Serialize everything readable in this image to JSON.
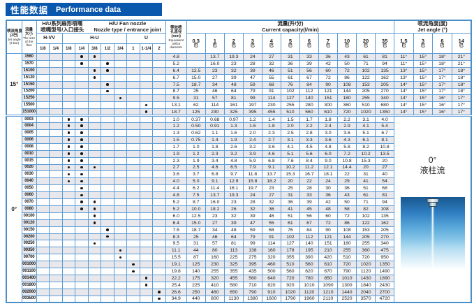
{
  "title": {
    "zh": "性能数据",
    "en": "Performance data"
  },
  "colors": {
    "title_bar": "#0a58ad",
    "grid_border": "#5b9bd5",
    "outer_border": "#4a90c8",
    "stripe_row": "#e8e8ec",
    "illustration_top_blue": "#17578f",
    "illustration_light_blue": "#b9dff2"
  },
  "table": {
    "header": {
      "jet_angle_col": {
        "zh1": "喷流角度",
        "zh2": "(3巴)",
        "en1": "Jet angle",
        "en2": "(3 bar)"
      },
      "flow_col": {
        "zh1": "流量",
        "zh2": "大小",
        "en1": "The size",
        "en2": "of the",
        "en3": "flow"
      },
      "nozzle_group": {
        "zh1": "H/U系列扇形喷嘴",
        "zh2": "喷嘴型号/入口接头",
        "en1": "H/U  Fan nozzle",
        "en2": "Nozzle type / entrance joint"
      },
      "nozzle_subgroups": [
        {
          "label": "H-VV",
          "sizes": [
            "1/8",
            "1/4"
          ]
        },
        {
          "label": "H-U",
          "sizes": [
            "1/8",
            "1/4",
            "3/8",
            "1/2",
            "3/4"
          ]
        },
        {
          "label": "U",
          "sizes": [
            "1",
            "1-1/4",
            "2"
          ]
        }
      ],
      "eq_diameter_col": {
        "zh1": "等效喷",
        "zh2": "孔直径",
        "unit": "(mm)",
        "en1": "Equivalent",
        "en2": "orifice",
        "en3": "diameter"
      },
      "capacity_group": {
        "zh": "流量(升/分)",
        "en": "Current capacity(l/min)"
      },
      "pressures": [
        "0.3",
        "1",
        "2",
        "3",
        "4",
        "5",
        "6",
        "7",
        "10",
        "20",
        "35"
      ],
      "pressure_unit": "巴",
      "jet_angle_group": {
        "zh": "喷流角度(度)",
        "en": "Jet angle (°)"
      },
      "angle_pressures": [
        "1.5",
        "3",
        "6",
        "14"
      ]
    },
    "sections": [
      {
        "angle": "15°",
        "rows": [
          {
            "flow": "1560",
            "dots": [
              4,
              5
            ],
            "dia": "4.8",
            "values": [
              "",
              "13.7",
              "19.3",
              "24",
              "27",
              "31",
              "33",
              "36",
              "43",
              "61",
              "81"
            ],
            "angles": [
              "11°",
              "15°",
              "18°",
              "21°"
            ]
          },
          {
            "flow": "1570",
            "dots": [
              4,
              6
            ],
            "dia": "5.2",
            "values": [
              "",
              "16.0",
              "23",
              "28",
              "32",
              "36",
              "39",
              "42",
              "50",
              "71",
              "94"
            ],
            "angles": [
              "11°",
              "15°",
              "18°",
              "21°"
            ]
          },
          {
            "flow": "15100",
            "dots": [
              5,
              6
            ],
            "dia": "6.4",
            "values": [
              "12.5",
              "23",
              "32",
              "39",
              "46",
              "51",
              "56",
              "60",
              "72",
              "102",
              "135"
            ],
            "angles": [
              "13°",
              "15°",
              "17°",
              "18°"
            ]
          },
          {
            "flow": "15120",
            "dots": [
              5
            ],
            "dia": "6.7",
            "values": [
              "15.0",
              "27",
              "39",
              "47",
              "55",
              "61",
              "67",
              "72",
              "86",
              "122",
              "162"
            ],
            "angles": [
              "13°",
              "15°",
              "17°",
              "18°"
            ]
          },
          {
            "flow": "15150",
            "dots": [
              6
            ],
            "dia": "7.5",
            "values": [
              "18.7",
              "34",
              "48",
              "59",
              "68",
              "76",
              "84",
              "90",
              "108",
              "153",
              "205"
            ],
            "angles": [
              "14°",
              "15°",
              "17°",
              "18°"
            ]
          },
          {
            "flow": "15200",
            "dots": [
              6
            ],
            "dia": "8.7",
            "values": [
              "25",
              "46",
              "64",
              "79",
              "91",
              "102",
              "112",
              "121",
              "144",
              "205",
              "270"
            ],
            "angles": [
              "14°",
              "15°",
              "17°",
              "18°"
            ]
          },
          {
            "flow": "15250",
            "dots": [
              7
            ],
            "dia": "9.5",
            "values": [
              "31",
              "57",
              "81",
              "99",
              "114",
              "127",
              "140",
              "151",
              "180",
              "255",
              "340"
            ],
            "angles": [
              "14°",
              "15°",
              "16°",
              "17°"
            ]
          },
          {
            "flow": "15500",
            "dots": [
              9
            ],
            "dia": "13.1",
            "values": [
              "62",
              "114",
              "161",
              "197",
              "230",
              "255",
              "280",
              "300",
              "360",
              "510",
              "680"
            ],
            "angles": [
              "14°",
              "15°",
              "16°",
              "17°"
            ]
          },
          {
            "flow": "151000",
            "dots": [
              9
            ],
            "dia": "18.7",
            "values": [
              "125",
              "230",
              "325",
              "395",
              "455",
              "510",
              "560",
              "610",
              "720",
              "1020",
              "1350"
            ],
            "angles": [
              "14°",
              "15°",
              "16°",
              "17°"
            ]
          }
        ]
      },
      {
        "angle": "0°",
        "merged_label": {
          "line1": "0°",
          "line2": "液柱流"
        },
        "rows": [
          {
            "flow": "0003",
            "dots": [
              3,
              4
            ],
            "dia": "1.0",
            "values": [
              "0.37",
              "0.68",
              "0.97",
              "1.2",
              "1.4",
              "1.5",
              "1.7",
              "1.8",
              "2.2",
              "3.1",
              "4.0"
            ]
          },
          {
            "flow": "0004",
            "dots": [
              3,
              4
            ],
            "dia": "1.2",
            "values": [
              "0.50",
              "0.91",
              "1.3",
              "1.6",
              "1.8",
              "2.0",
              "2.2",
              "2.4",
              "2.9",
              "4.1",
              "5.4"
            ]
          },
          {
            "flow": "0005",
            "dots": [
              3,
              4
            ],
            "dia": "1.3",
            "values": [
              "0.62",
              "1.1",
              "1.6",
              "2.0",
              "2.3",
              "2.5",
              "2.8",
              "3.0",
              "3.6",
              "5.1",
              "6.7"
            ]
          },
          {
            "flow": "0006",
            "dots": [
              3,
              4
            ],
            "dia": "1.5",
            "values": [
              "0.75",
              "1.4",
              "1.9",
              "2.4",
              "2.7",
              "3.1",
              "3.3",
              "3.6",
              "4.3",
              "6.1",
              "8.1"
            ]
          },
          {
            "flow": "0008",
            "dots": [
              3,
              4
            ],
            "dia": "1.7",
            "values": [
              "1.0",
              "1.8",
              "2.6",
              "3.2",
              "3.6",
              "4.1",
              "4.5",
              "4.8",
              "5.8",
              "8.2",
              "10.8"
            ]
          },
          {
            "flow": "0010",
            "dots": [
              3,
              4
            ],
            "dia": "1.9",
            "values": [
              "1.2",
              "2.3",
              "3.2",
              "3.9",
              "4.6",
              "5.1",
              "5.6",
              "6.0",
              "7.2",
              "10.2",
              "13.5"
            ]
          },
          {
            "flow": "0015",
            "dots": [
              3,
              4
            ],
            "dia": "2.3",
            "values": [
              "1.9",
              "3.4",
              "4.8",
              "5.9",
              "6.8",
              "7.6",
              "8.4",
              "9.0",
              "10.8",
              "15.3",
              "20"
            ]
          },
          {
            "flow": "0020",
            "dots": [
              3,
              4,
              5
            ],
            "dia": "2.7",
            "values": [
              "2.5",
              "4.6",
              "6.5",
              "7.9",
              "9.1",
              "10.2",
              "11.2",
              "12.1",
              "14.4",
              "20",
              "27"
            ]
          },
          {
            "flow": "0030",
            "dots": [
              3,
              4
            ],
            "dia": "3.6",
            "values": [
              "3.7",
              "6.8",
              "9.7",
              "11.8",
              "13.7",
              "15.3",
              "16.7",
              "18.1",
              "22",
              "31",
              "40"
            ]
          },
          {
            "flow": "0040",
            "dots": [
              3,
              4
            ],
            "dia": "4.0",
            "values": [
              "5.0",
              "9.1",
              "12.9",
              "15.8",
              "18.2",
              "20",
              "22",
              "24",
              "29",
              "41",
              "54"
            ]
          },
          {
            "flow": "0050",
            "dots": [
              4
            ],
            "dia": "4.4",
            "values": [
              "6.2",
              "11.4",
              "16.1",
              "19.7",
              "23",
              "25",
              "28",
              "30",
              "36",
              "51",
              "68"
            ]
          },
          {
            "flow": "0060",
            "dots": [
              4
            ],
            "dia": "4.8",
            "values": [
              "7.5",
              "13.7",
              "19.3",
              "24",
              "27",
              "31",
              "33",
              "36",
              "43",
              "61",
              "81"
            ]
          },
          {
            "flow": "0070",
            "dots": [
              4,
              5
            ],
            "dia": "5.2",
            "values": [
              "8.7",
              "16.0",
              "23",
              "28",
              "32",
              "36",
              "39",
              "42",
              "50",
              "71",
              "94"
            ]
          },
          {
            "flow": "0080",
            "dots": [
              4,
              5
            ],
            "dia": "5.2",
            "values": [
              "10.0",
              "18.2",
              "26",
              "32",
              "36",
              "41",
              "45",
              "48",
              "58",
              "82",
              "108"
            ]
          },
          {
            "flow": "00100",
            "dots": [
              5
            ],
            "dia": "6.0",
            "values": [
              "12.5",
              "23",
              "32",
              "39",
              "46",
              "51",
              "56",
              "60",
              "72",
              "102",
              "135"
            ]
          },
          {
            "flow": "00120",
            "dots": [
              5
            ],
            "dia": "6.4",
            "values": [
              "15.0",
              "27",
              "39",
              "47",
              "55",
              "61",
              "67",
              "72",
              "86",
              "122",
              "162"
            ]
          },
          {
            "flow": "00150",
            "dots": [
              6
            ],
            "dia": "7.5",
            "values": [
              "18.7",
              "34",
              "48",
              "59",
              "68",
              "76",
              "84",
              "90",
              "108",
              "153",
              "205"
            ]
          },
          {
            "flow": "00200",
            "dots": [
              6
            ],
            "dia": "8.3",
            "values": [
              "25",
              "46",
              "64",
              "79",
              "91",
              "102",
              "112",
              "121",
              "144",
              "205",
              "270"
            ]
          },
          {
            "flow": "00250",
            "dots": [
              5
            ],
            "dia": "9.5",
            "values": [
              "31",
              "57",
              "81",
              "99",
              "114",
              "127",
              "140",
              "151",
              "180",
              "255",
              "340"
            ]
          },
          {
            "flow": "00350",
            "dots": [
              7
            ],
            "dia": "11.1",
            "values": [
              "44",
              "80",
              "113",
              "138",
              "160",
              "178",
              "195",
              "210",
              "255",
              "360",
              "475"
            ]
          },
          {
            "flow": "00700",
            "dots": [
              7
            ],
            "dia": "15.5",
            "values": [
              "87",
              "160",
              "225",
              "275",
              "320",
              "355",
              "390",
              "420",
              "510",
              "720",
              "950"
            ]
          },
          {
            "flow": "001000",
            "dots": [
              8
            ],
            "dia": "19.1",
            "values": [
              "125",
              "230",
              "325",
              "395",
              "460",
              "510",
              "560",
              "610",
              "720",
              "1020",
              "1350"
            ]
          },
          {
            "flow": "001100",
            "dots": [
              8
            ],
            "dia": "19.8",
            "values": [
              "140",
              "255",
              "355",
              "435",
              "500",
              "560",
              "620",
              "670",
              "790",
              "1120",
              "1490"
            ]
          },
          {
            "flow": "001400",
            "dots": [
              9
            ],
            "dia": "22.2",
            "values": [
              "175",
              "320",
              "455",
              "560",
              "640",
              "720",
              "780",
              "850",
              "1010",
              "1430",
              "1890"
            ]
          },
          {
            "flow": "001800",
            "dots": [
              9
            ],
            "dia": "25.4",
            "values": [
              "225",
              "410",
              "580",
              "710",
              "820",
              "920",
              "1010",
              "1090",
              "1300",
              "1840",
              "2430"
            ]
          },
          {
            "flow": "002000",
            "dots": [
              10
            ],
            "dia": "26.6",
            "values": [
              "250",
              "460",
              "650",
              "790",
              "910",
              "1020",
              "1120",
              "1210",
              "1440",
              "2040",
              "2700"
            ]
          },
          {
            "flow": "003500",
            "dots": [
              10
            ],
            "dia": "34.9",
            "values": [
              "440",
              "800",
              "1130",
              "1380",
              "1600",
              "1790",
              "1960",
              "2110",
              "2520",
              "3570",
              "4720"
            ]
          }
        ]
      }
    ]
  }
}
